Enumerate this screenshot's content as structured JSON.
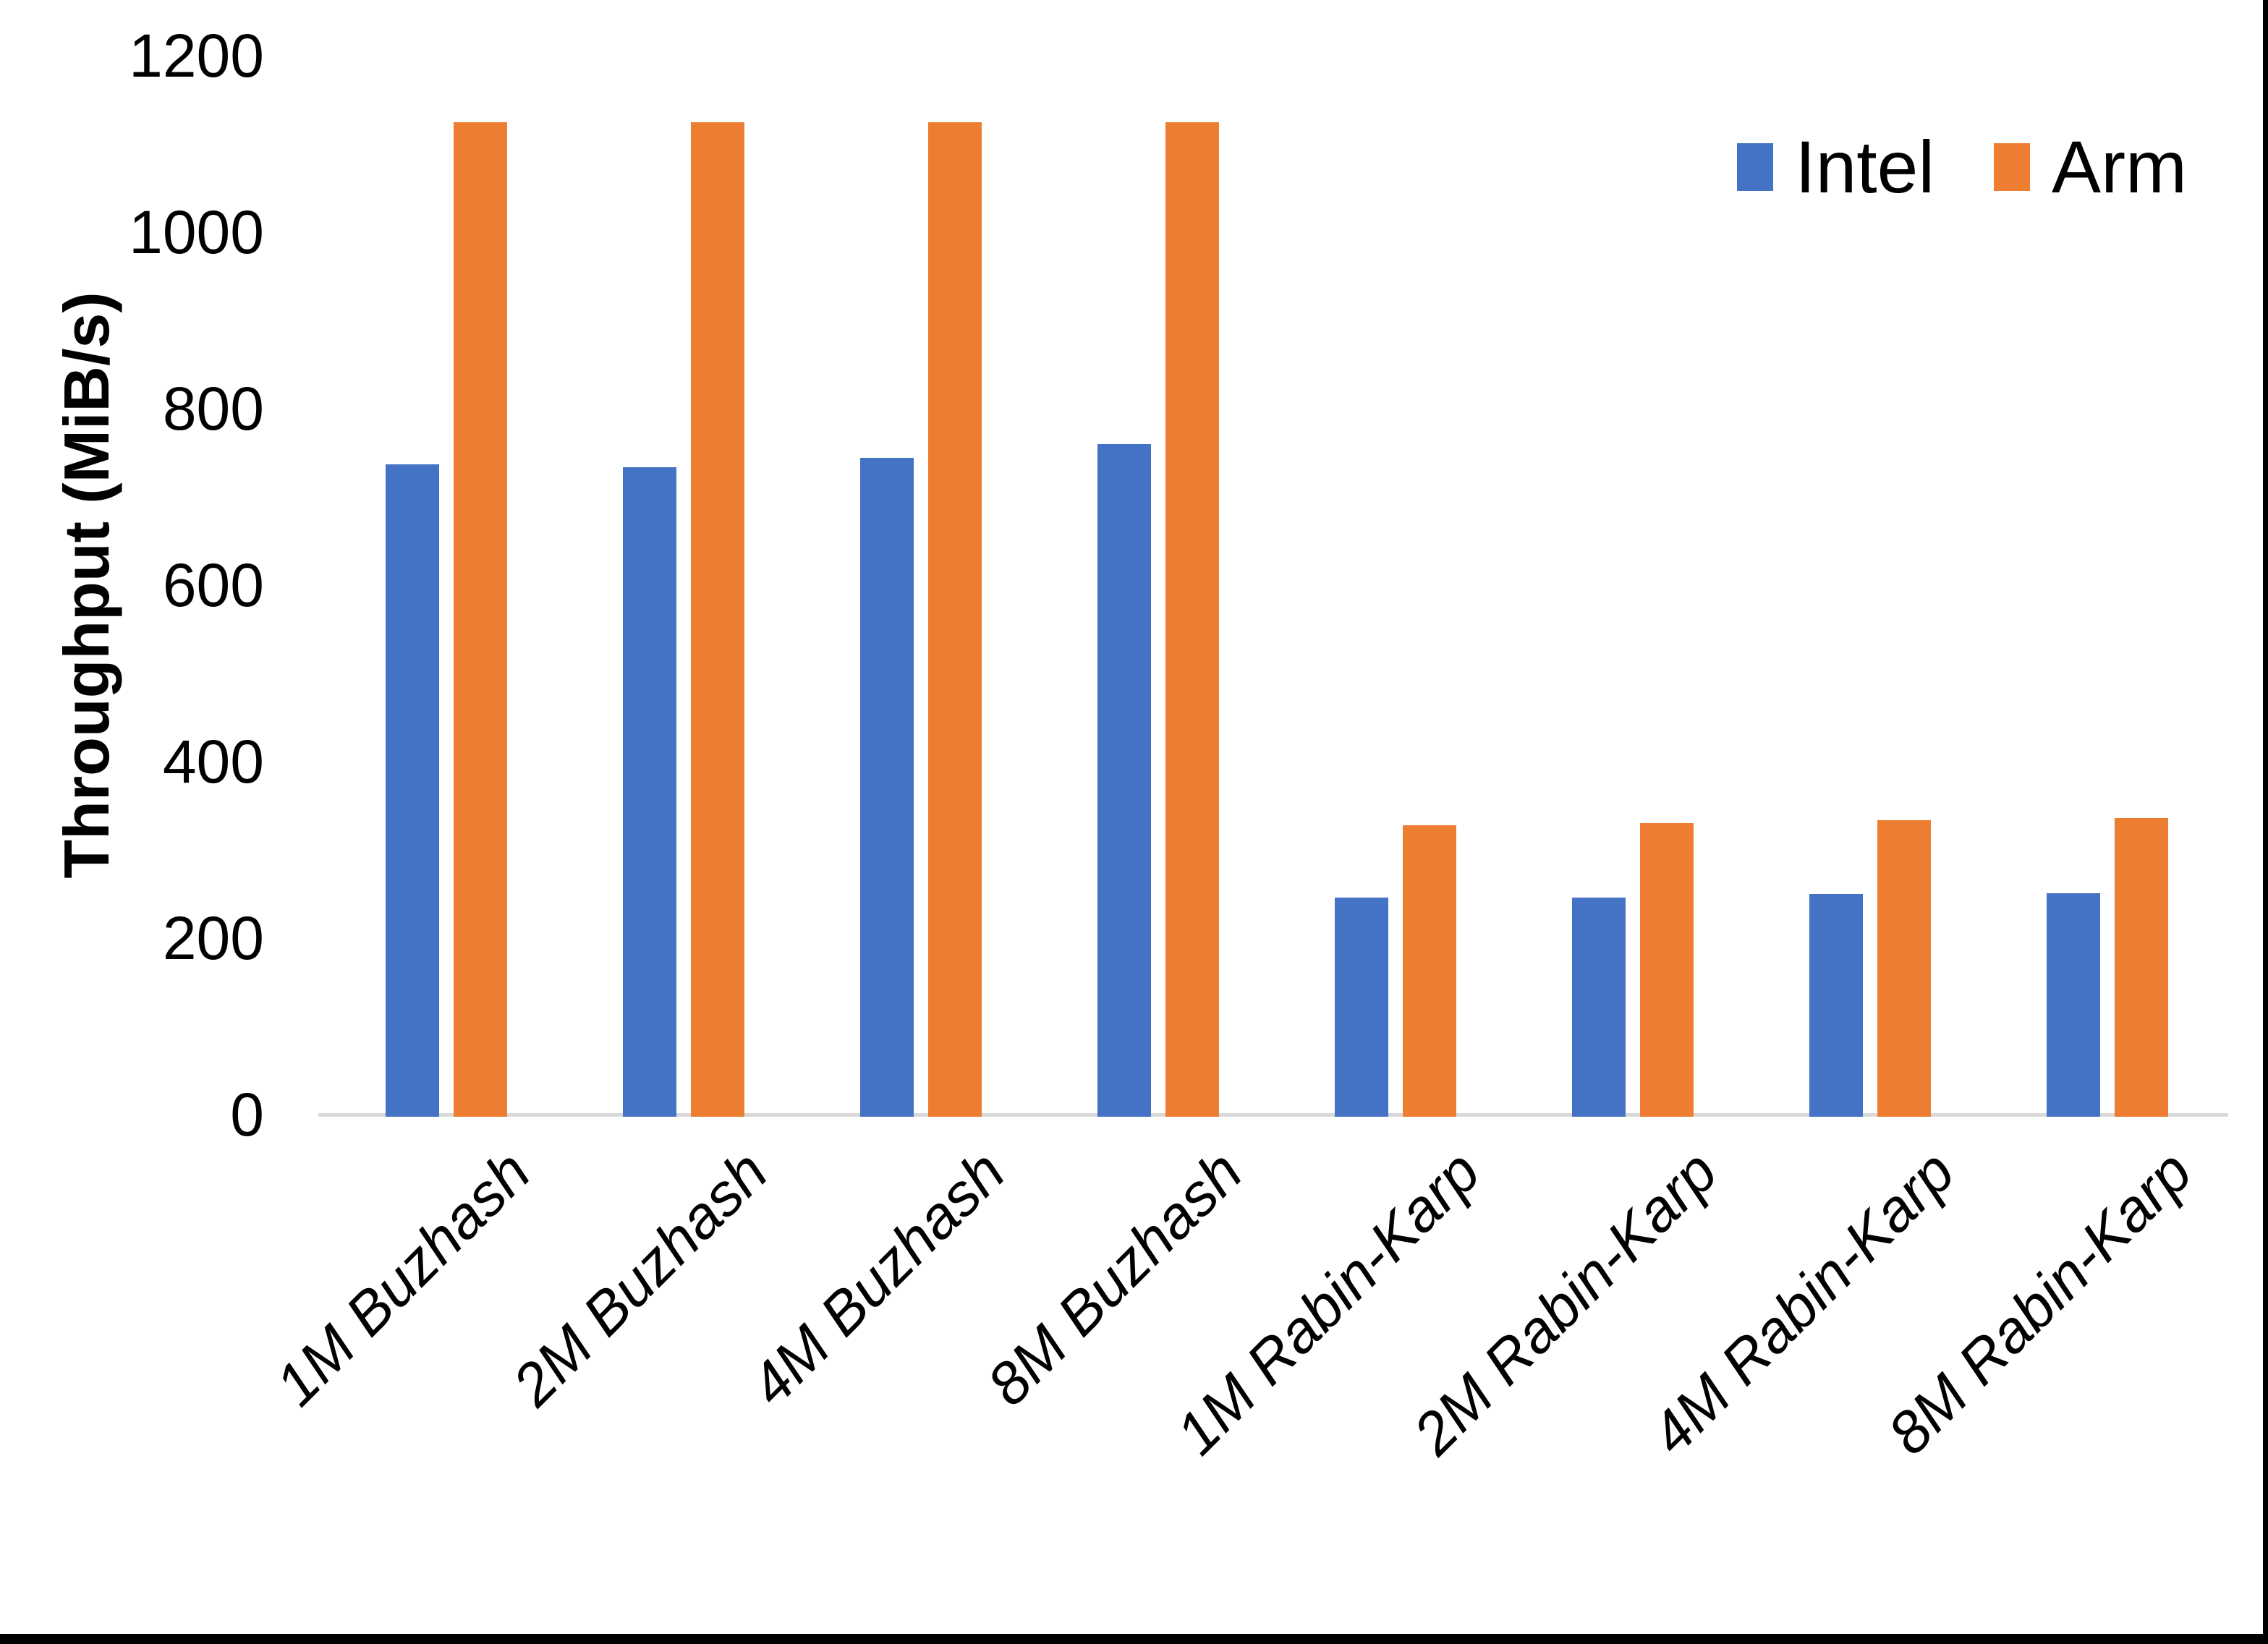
{
  "chart_data": {
    "type": "bar",
    "title": "",
    "ylabel": "Throughput (MiB/s)",
    "ylim": [
      0,
      1200
    ],
    "yticks": [
      0,
      200,
      400,
      600,
      800,
      1000,
      1200
    ],
    "grid": false,
    "legend_position": "top-right",
    "categories": [
      "1M Buzhash",
      "2M Buzhash",
      "4M Buzhash",
      "8M Buzhash",
      "1M Rabin-Karp",
      "2M Rabin-Karp",
      "4M Rabin-Karp",
      "8M Rabin-Karp"
    ],
    "series": [
      {
        "name": "Intel",
        "color": "#4472C4",
        "values": [
          737,
          734,
          744,
          760,
          246,
          246,
          250,
          251
        ]
      },
      {
        "name": "Arm",
        "color": "#ED7D31",
        "values": [
          1125,
          1125,
          1125,
          1125,
          328,
          330,
          334,
          336
        ]
      }
    ]
  },
  "colors": {
    "intel_blue": "#4472C4",
    "arm_orange": "#ED7D31",
    "axis_line": "#D9D9D9",
    "text": "#000000",
    "background": "#FFFFFF",
    "frame_edge": "#000000"
  }
}
